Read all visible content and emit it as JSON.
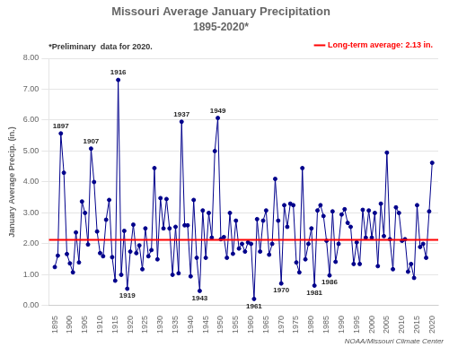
{
  "chart_data": {
    "type": "line",
    "title": "Missouri Average January Precipitation",
    "subtitle": "1895-2020*",
    "y_label": "January Average Precip. (in.)",
    "note": "*Preliminary  data for 2020.",
    "credit": "NOAA/Missouri Climate Center",
    "color": "#00008B",
    "marker": "circle",
    "grid": "y",
    "legend": "top right",
    "reference_line": {
      "value": 2.13,
      "label": "Long-term average: 2.13 in.",
      "color": "#FF0000"
    },
    "xlim": [
      1893,
      2022
    ],
    "xticks": [
      1895,
      1900,
      1905,
      1910,
      1915,
      1920,
      1925,
      1930,
      1935,
      1940,
      1945,
      1950,
      1955,
      1960,
      1965,
      1970,
      1975,
      1980,
      1985,
      1990,
      1995,
      2000,
      2005,
      2010,
      2015,
      2020
    ],
    "ylim": [
      0.0,
      8.0
    ],
    "yticks": [
      {
        "value": 0.0,
        "label": "0.00"
      },
      {
        "value": 1.0,
        "label": "1.00"
      },
      {
        "value": 2.0,
        "label": "2.00"
      },
      {
        "value": 3.0,
        "label": "3.00"
      },
      {
        "value": 4.0,
        "label": "4.00"
      },
      {
        "value": 5.0,
        "label": "5.00"
      },
      {
        "value": 6.0,
        "label": "6.00"
      },
      {
        "value": 7.0,
        "label": "7.00"
      },
      {
        "value": 8.0,
        "label": "8.00"
      }
    ],
    "annotations": [
      {
        "x": 1897,
        "y": 5.57,
        "text": "1897",
        "position": "above"
      },
      {
        "x": 1916,
        "y": 7.3,
        "text": "1916",
        "position": "above"
      },
      {
        "x": 1907,
        "y": 5.08,
        "text": "1907",
        "position": "above"
      },
      {
        "x": 1937,
        "y": 5.95,
        "text": "1937",
        "position": "above"
      },
      {
        "x": 1949,
        "y": 6.07,
        "text": "1949",
        "position": "above"
      },
      {
        "x": 1919,
        "y": 0.55,
        "text": "1919",
        "position": "below"
      },
      {
        "x": 1943,
        "y": 0.48,
        "text": "1943",
        "position": "below"
      },
      {
        "x": 1961,
        "y": 0.22,
        "text": "1961",
        "position": "below"
      },
      {
        "x": 1970,
        "y": 0.72,
        "text": "1970",
        "position": "below"
      },
      {
        "x": 1981,
        "y": 0.65,
        "text": "1981",
        "position": "below"
      },
      {
        "x": 1986,
        "y": 0.98,
        "text": "1986",
        "position": "below"
      }
    ],
    "x": [
      1895,
      1896,
      1897,
      1898,
      1899,
      1900,
      1901,
      1902,
      1903,
      1904,
      1905,
      1906,
      1907,
      1908,
      1909,
      1910,
      1911,
      1912,
      1913,
      1914,
      1915,
      1916,
      1917,
      1918,
      1919,
      1920,
      1921,
      1922,
      1923,
      1924,
      1925,
      1926,
      1927,
      1928,
      1929,
      1930,
      1931,
      1932,
      1933,
      1934,
      1935,
      1936,
      1937,
      1938,
      1939,
      1940,
      1941,
      1942,
      1943,
      1944,
      1945,
      1946,
      1947,
      1948,
      1949,
      1950,
      1951,
      1952,
      1953,
      1954,
      1955,
      1956,
      1957,
      1958,
      1959,
      1960,
      1961,
      1962,
      1963,
      1964,
      1965,
      1966,
      1967,
      1968,
      1969,
      1970,
      1971,
      1972,
      1973,
      1974,
      1975,
      1976,
      1977,
      1978,
      1979,
      1980,
      1981,
      1982,
      1983,
      1984,
      1985,
      1986,
      1987,
      1988,
      1989,
      1990,
      1991,
      1992,
      1993,
      1994,
      1995,
      1996,
      1997,
      1998,
      1999,
      2000,
      2001,
      2002,
      2003,
      2004,
      2005,
      2006,
      2007,
      2008,
      2009,
      2010,
      2011,
      2012,
      2013,
      2014,
      2015,
      2016,
      2017,
      2018,
      2019,
      2020
    ],
    "values": [
      1.25,
      1.62,
      5.57,
      4.3,
      1.67,
      1.37,
      1.08,
      2.37,
      1.4,
      3.37,
      3.0,
      1.98,
      5.08,
      4.0,
      2.4,
      1.7,
      1.6,
      2.78,
      3.42,
      1.57,
      0.81,
      7.3,
      1.0,
      2.42,
      0.55,
      1.75,
      2.62,
      1.7,
      1.95,
      1.18,
      2.5,
      1.6,
      1.8,
      4.45,
      1.5,
      3.48,
      2.5,
      3.45,
      2.5,
      1.0,
      2.55,
      1.05,
      5.95,
      2.6,
      2.6,
      0.95,
      3.42,
      1.55,
      0.48,
      3.08,
      1.55,
      3.0,
      2.2,
      5.0,
      6.07,
      2.15,
      2.22,
      1.55,
      3.0,
      1.68,
      2.75,
      1.85,
      2.0,
      1.75,
      2.05,
      2.0,
      0.22,
      2.8,
      1.75,
      2.75,
      3.08,
      1.65,
      2.0,
      4.1,
      2.75,
      0.72,
      3.25,
      2.55,
      3.3,
      3.25,
      1.4,
      1.08,
      4.45,
      1.5,
      2.0,
      2.5,
      0.65,
      3.08,
      3.25,
      2.9,
      2.1,
      0.98,
      3.05,
      1.42,
      2.0,
      2.95,
      3.12,
      2.68,
      2.55,
      1.35,
      2.05,
      1.35,
      3.1,
      2.2,
      3.08,
      2.2,
      3.0,
      1.28,
      3.3,
      2.25,
      4.95,
      2.15,
      1.18,
      3.18,
      3.0,
      2.1,
      2.15,
      1.1,
      1.35,
      0.9,
      3.25,
      1.9,
      2.0,
      1.55,
      3.05,
      4.62
    ]
  }
}
